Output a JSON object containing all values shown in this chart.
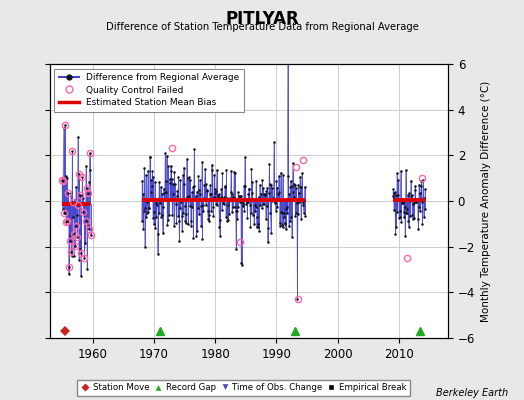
{
  "title": "PITLYAR",
  "subtitle": "Difference of Station Temperature Data from Regional Average",
  "ylabel": "Monthly Temperature Anomaly Difference (°C)",
  "credit": "Berkeley Earth",
  "xlim": [
    1953,
    2018
  ],
  "ylim": [
    -6,
    6
  ],
  "yticks": [
    -6,
    -4,
    -2,
    0,
    2,
    4,
    6
  ],
  "xticks": [
    1960,
    1970,
    1980,
    1990,
    2000,
    2010
  ],
  "background_color": "#e8e8e8",
  "plot_background": "#ffffff",
  "grid_color": "#c8c8c8",
  "bias_color": "#dd0000",
  "line_color": "#4444cc",
  "dot_color": "#111111",
  "qc_color": "#ff66aa",
  "segment_biases": [
    {
      "start": 1955.0,
      "end": 1959.6,
      "bias": -0.15
    },
    {
      "start": 1968.0,
      "end": 1994.6,
      "bias": 0.05
    },
    {
      "start": 2009.0,
      "end": 2014.2,
      "bias": 0.05
    }
  ],
  "record_gaps": [
    1971.0,
    1993.0,
    2013.5
  ],
  "station_moves": [
    1955.5
  ],
  "seeds": [
    42,
    123,
    77
  ],
  "seg1_start": 1955.0,
  "seg1_end": 1959.7,
  "seg2_start": 1968.0,
  "seg2_end": 1994.7,
  "seg3_start": 2009.0,
  "seg3_end": 2014.3,
  "seg1_bias": -0.15,
  "seg2_bias": 0.05,
  "seg3_bias": 0.05
}
